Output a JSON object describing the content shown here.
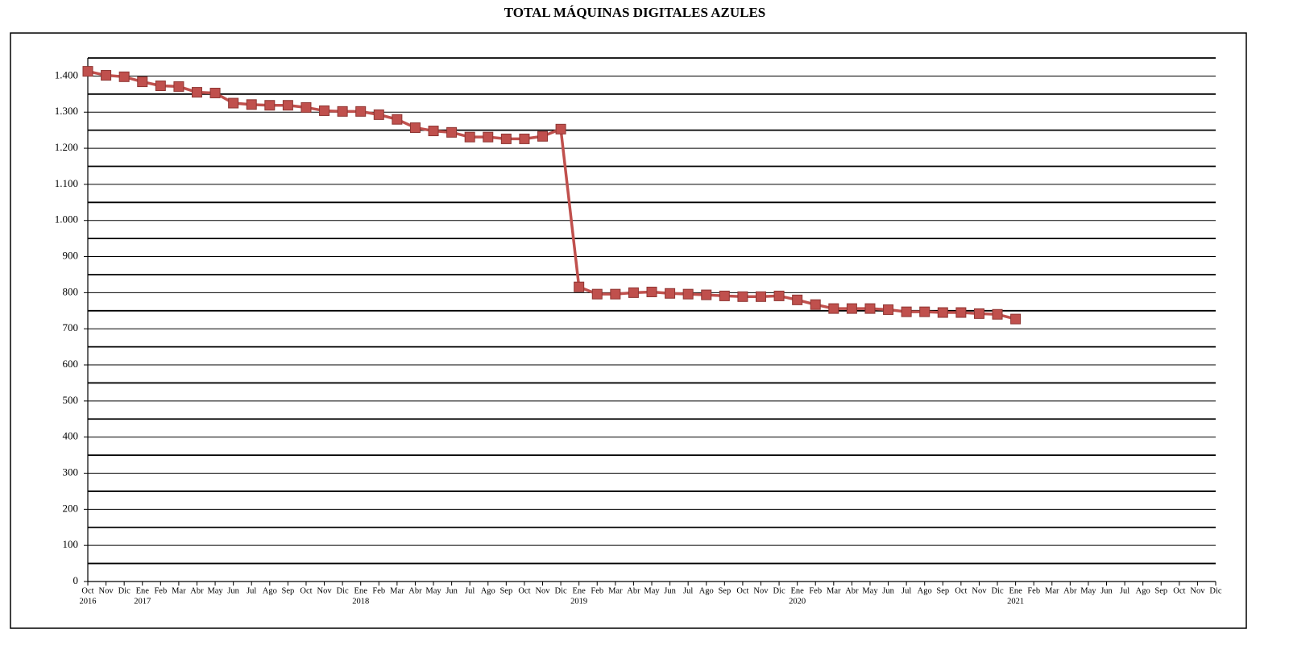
{
  "chart_data": {
    "type": "line",
    "title": "TOTAL MÁQUINAS DIGITALES AZULES",
    "categories": [
      [
        "Oct",
        "2016"
      ],
      "Nov",
      "Dic",
      [
        "Ene",
        "2017"
      ],
      "Feb",
      "Mar",
      "Abr",
      "May",
      "Jun",
      "Jul",
      "Ago",
      "Sep",
      "Oct",
      "Nov",
      "Dic",
      [
        "Ene",
        "2018"
      ],
      "Feb",
      "Mar",
      "Abr",
      "May",
      "Jun",
      "Jul",
      "Ago",
      "Sep",
      "Oct",
      "Nov",
      "Dic",
      [
        "Ene",
        "2019"
      ],
      "Feb",
      "Mar",
      "Abr",
      "May",
      "Jun",
      "Jul",
      "Ago",
      "Sep",
      "Oct",
      "Nov",
      "Dic",
      [
        "Ene",
        "2020"
      ],
      "Feb",
      "Mar",
      "Abr",
      "May",
      "Jun",
      "Jul",
      "Ago",
      "Sep",
      "Oct",
      "Nov",
      "Dic",
      [
        "Ene",
        "2021"
      ],
      "Feb",
      "Mar",
      "Abr",
      "May",
      "Jun",
      "Jul",
      "Ago",
      "Sep",
      "Oct",
      "Nov",
      "Dic"
    ],
    "series": [
      {
        "color": "#c0504d",
        "values": [
          1413,
          1402,
          1398,
          1384,
          1373,
          1371,
          1355,
          1353,
          1325,
          1321,
          1319,
          1319,
          1313,
          1304,
          1302,
          1302,
          1293,
          1280,
          1257,
          1248,
          1244,
          1231,
          1231,
          1226,
          1226,
          1233,
          1253,
          816,
          796,
          796,
          800,
          802,
          798,
          796,
          794,
          791,
          789,
          789,
          791,
          780,
          767,
          756,
          756,
          756,
          753,
          747,
          747,
          745,
          745,
          742,
          740,
          727,
          null,
          null,
          null,
          null,
          null,
          null,
          null,
          null,
          null,
          null,
          null
        ]
      }
    ],
    "ylim": [
      0,
      1450
    ],
    "yticks": [
      0,
      100,
      200,
      300,
      400,
      500,
      600,
      700,
      800,
      900,
      {
        "value": 1000,
        "label": "1.000"
      },
      {
        "value": 1100,
        "label": "1.100"
      },
      {
        "value": 1200,
        "label": "1.200"
      },
      {
        "value": 1300,
        "label": "1.300"
      },
      {
        "value": 1400,
        "label": "1.400"
      }
    ],
    "y_minor_ticks": [
      50,
      150,
      250,
      350,
      450,
      550,
      650,
      750,
      850,
      950,
      1050,
      1150,
      1250,
      1350,
      1450
    ],
    "grid": true
  }
}
